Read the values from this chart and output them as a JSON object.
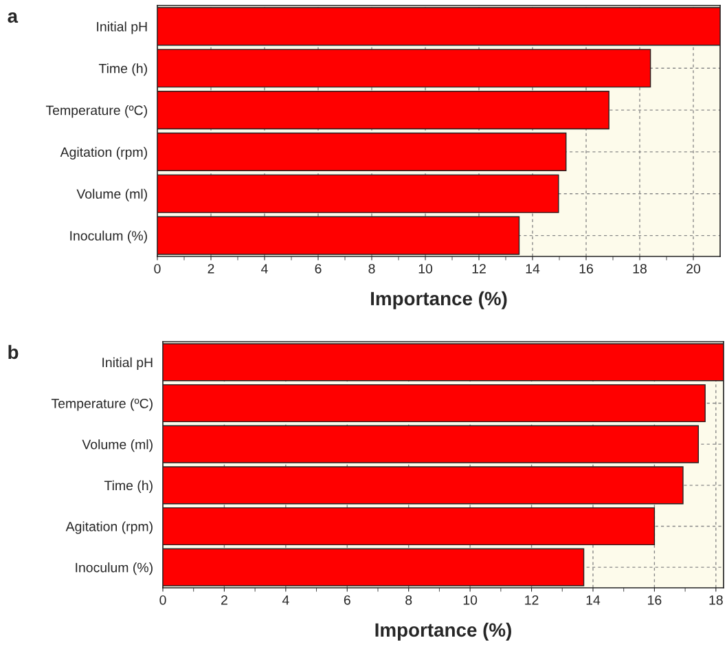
{
  "chart_data": [
    {
      "type": "bar",
      "orientation": "horizontal",
      "annotations": [
        "a"
      ],
      "xlabel": "Importance (%)",
      "categories": [
        "Initial pH",
        "Time (h)",
        "Temperature (ºC)",
        "Agitation (rpm)",
        "Volume (ml)",
        "Inoculum (%)"
      ],
      "values": [
        21.0,
        18.4,
        16.85,
        15.25,
        14.97,
        13.5
      ],
      "color": "#ff0000",
      "xlim": [
        0,
        21.0
      ],
      "xticks": [
        0,
        2,
        4,
        6,
        8,
        10,
        12,
        14,
        16,
        18,
        20
      ],
      "grid": true
    },
    {
      "type": "bar",
      "orientation": "horizontal",
      "annotations": [
        "b"
      ],
      "xlabel": "Importance (%)",
      "categories": [
        "Initial pH",
        "Temperature (ºC)",
        "Volume (ml)",
        "Time (h)",
        "Agitation (rpm)",
        "Inoculum (%)"
      ],
      "values": [
        18.25,
        17.65,
        17.43,
        16.93,
        16.0,
        13.7
      ],
      "color": "#ff0000",
      "xlim": [
        0,
        18.25
      ],
      "xticks": [
        0,
        2,
        4,
        6,
        8,
        10,
        12,
        14,
        16,
        18
      ],
      "grid": true
    }
  ]
}
